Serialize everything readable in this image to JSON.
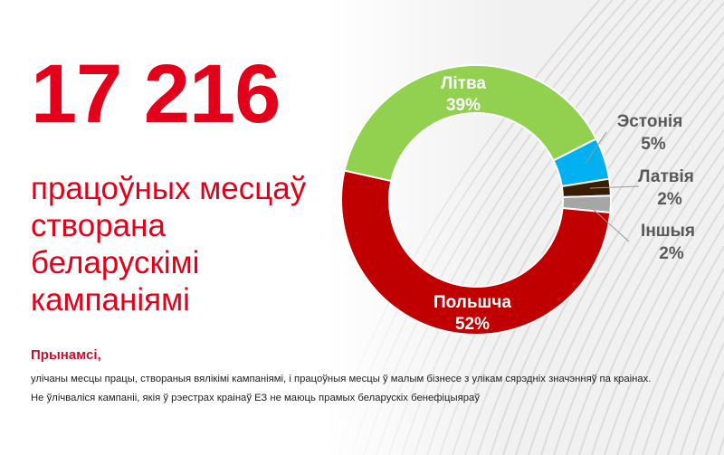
{
  "headline": {
    "number": "17 216",
    "subtitle": "працоўных месцаў створана беларускімі кампаніямі"
  },
  "note": {
    "title": "Прынамсі,",
    "lines": [
      "улічаны месцы працы, створаныя вялікімі кампаніямі, і працоўныя месцы ў малым бізнесе з улікам сярэдніх значэнняў па краінах.",
      "Не ўлічваліся кампаніі, якія ў рэестрах краінаў ЕЗ не маюць прамых беларускіх бенефіцыяраў"
    ]
  },
  "chart_data": {
    "type": "pie",
    "subtype": "donut",
    "slices": [
      {
        "label": "Эстонія",
        "value": 5,
        "display": "5%",
        "color": "#00b0f0",
        "label_position": "outside"
      },
      {
        "label": "Латвія",
        "value": 2,
        "display": "2%",
        "color": "#3b1d05",
        "label_position": "outside"
      },
      {
        "label": "Іншыя",
        "value": 2,
        "display": "2%",
        "color": "#a6a6a6",
        "label_position": "outside"
      },
      {
        "label": "Польшча",
        "value": 52,
        "display": "52%",
        "color": "#c00000",
        "label_position": "inside"
      },
      {
        "label": "Літва",
        "value": 39,
        "display": "39%",
        "color": "#92d050",
        "label_position": "inside"
      }
    ],
    "legend": "none"
  }
}
